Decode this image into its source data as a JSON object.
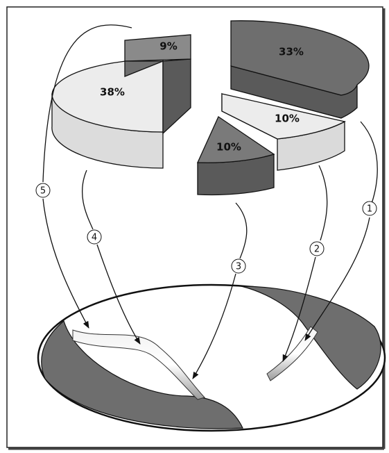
{
  "slices": [
    {
      "label": "38%"
    },
    {
      "label": "9%"
    },
    {
      "label": "33%"
    },
    {
      "label": "10%"
    },
    {
      "label": "10%"
    }
  ],
  "callouts": [
    {
      "label": "1"
    },
    {
      "label": "2"
    },
    {
      "label": "3"
    },
    {
      "label": "4"
    },
    {
      "label": "5"
    }
  ]
}
